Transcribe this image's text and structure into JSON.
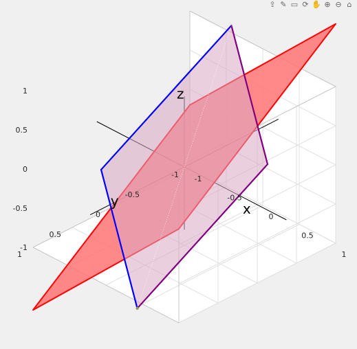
{
  "toolbar": {
    "icons": [
      "export-icon",
      "brush-icon",
      "datatip-icon",
      "rotate-icon",
      "pan-icon",
      "zoom-in-icon",
      "zoom-out-icon",
      "home-icon"
    ]
  },
  "colors": {
    "background": "#f0f0f0",
    "axes_face": "#ffffff",
    "grid": "#e1e1e1",
    "box": "#c8c8c8",
    "plane_fill": "#ff7373",
    "plane_edge": "#ff0000",
    "rhombus_edge": "#0000ff",
    "overlap_edge": "#800080",
    "rhombus_fill": "#d8aac4",
    "axis_lines": "#000000"
  },
  "chart_data": {
    "type": "3d-surface",
    "view": "3-D isometric",
    "grid": true,
    "xlim": [
      -1,
      1
    ],
    "ylim": [
      -1,
      1
    ],
    "zlim": [
      -1,
      1
    ],
    "xticks": [
      "-1",
      "-0.5",
      "0",
      "0.5",
      "1"
    ],
    "yticks": [
      "-1",
      "-0.5",
      "0",
      "0.5",
      "1"
    ],
    "zticks": [
      "-1",
      "-0.5",
      "0",
      "0.5",
      "1"
    ],
    "axis_labels": {
      "x": "x",
      "y": "y",
      "z": "z"
    },
    "plane": {
      "corners": [
        [
          -1,
          -1,
          -0.2
        ],
        [
          1,
          -1,
          1.8
        ],
        [
          1,
          1,
          0.2
        ],
        [
          -1,
          1,
          -1.8
        ]
      ]
    },
    "rhombus": {
      "vertices": [
        [
          0.55,
          -0.55,
          0.02
        ],
        [
          0,
          -0.6,
          1.5
        ],
        [
          -0.55,
          0.55,
          -0.02
        ],
        [
          0,
          0.6,
          -1.5
        ]
      ]
    },
    "axis_segments": [
      {
        "name": "x",
        "from": [
          -1.2,
          0,
          0
        ],
        "to": [
          1.4,
          0,
          0
        ]
      },
      {
        "name": "y",
        "from": [
          0,
          -1.2,
          0
        ],
        "to": [
          0,
          1.2,
          0
        ]
      },
      {
        "name": "z",
        "from": [
          0,
          0,
          -0.8
        ],
        "to": [
          0,
          0,
          0.9
        ]
      }
    ]
  }
}
